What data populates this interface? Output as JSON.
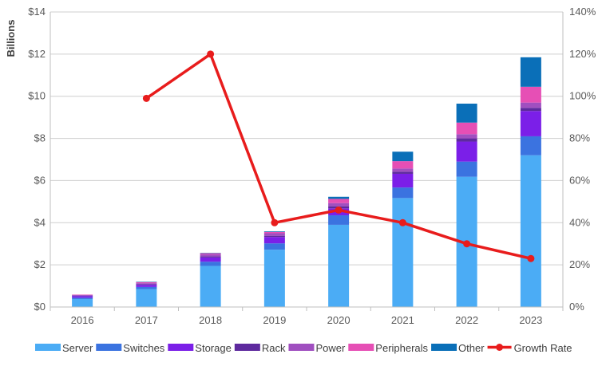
{
  "chart_data": {
    "type": "bar",
    "stacked": true,
    "categories": [
      "2016",
      "2017",
      "2018",
      "2019",
      "2020",
      "2021",
      "2022",
      "2023"
    ],
    "ylabel": "Billions",
    "ylim": [
      0,
      14
    ],
    "yticks": [
      "$0",
      "$2",
      "$4",
      "$6",
      "$8",
      "$10",
      "$12",
      "$14"
    ],
    "y2lim": [
      0,
      140
    ],
    "y2ticks": [
      "0%",
      "20%",
      "40%",
      "60%",
      "80%",
      "100%",
      "120%",
      "140%"
    ],
    "grid": true,
    "legend_position": "bottom",
    "series": [
      {
        "name": "Server",
        "color": "#4BACF5",
        "values": [
          0.38,
          0.85,
          1.95,
          2.72,
          3.9,
          5.17,
          6.18,
          7.2
        ]
      },
      {
        "name": "Switches",
        "color": "#3B73E0",
        "values": [
          0.06,
          0.1,
          0.2,
          0.3,
          0.45,
          0.5,
          0.72,
          0.9
        ]
      },
      {
        "name": "Storage",
        "color": "#7B1FE8",
        "values": [
          0.08,
          0.1,
          0.2,
          0.3,
          0.33,
          0.65,
          0.95,
          1.2
        ]
      },
      {
        "name": "Rack",
        "color": "#5E2A9E",
        "values": [
          0.02,
          0.03,
          0.05,
          0.06,
          0.1,
          0.1,
          0.15,
          0.15
        ]
      },
      {
        "name": "Power",
        "color": "#A04FC0",
        "values": [
          0.03,
          0.05,
          0.1,
          0.12,
          0.15,
          0.15,
          0.2,
          0.25
        ]
      },
      {
        "name": "Peripherals",
        "color": "#E64FB5",
        "values": [
          0.02,
          0.05,
          0.05,
          0.06,
          0.2,
          0.35,
          0.55,
          0.75
        ]
      },
      {
        "name": "Other",
        "color": "#0A6FB8",
        "values": [
          0.0,
          0.02,
          0.02,
          0.03,
          0.1,
          0.45,
          0.9,
          1.4
        ]
      }
    ],
    "line_series": {
      "name": "Growth Rate",
      "color": "#E81C1C",
      "axis": "right",
      "values": [
        null,
        99,
        120,
        40,
        46,
        40,
        30,
        23
      ]
    }
  }
}
